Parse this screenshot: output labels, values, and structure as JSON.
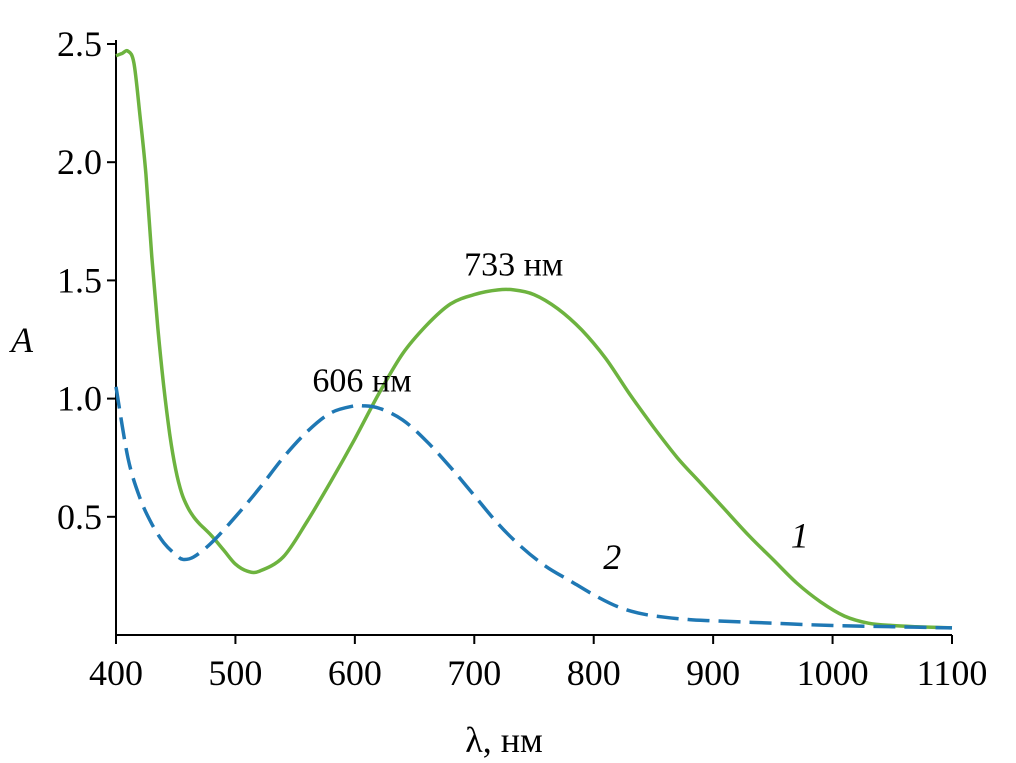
{
  "chart_data": {
    "type": "line",
    "xlabel": "λ, нм",
    "ylabel": "A",
    "xlim": [
      400,
      1100
    ],
    "ylim": [
      0,
      2.5
    ],
    "x_ticks": [
      400,
      500,
      600,
      700,
      800,
      900,
      1000,
      1100
    ],
    "y_ticks": [
      0.5,
      1.0,
      1.5,
      2.0,
      2.5
    ],
    "x_tick_labels": [
      "400",
      "500",
      "600",
      "700",
      "800",
      "900",
      "1000",
      "1100"
    ],
    "y_tick_labels": [
      "0.5",
      "1.0",
      "1.5",
      "2.0",
      "2.5"
    ],
    "grid": false,
    "series": [
      {
        "label": "1",
        "color": "#6db33f",
        "style": "solid",
        "label_at": [
          965,
          0.37
        ],
        "x": [
          400,
          405,
          410,
          415,
          420,
          425,
          430,
          435,
          440,
          445,
          450,
          455,
          460,
          465,
          470,
          480,
          490,
          500,
          510,
          520,
          540,
          560,
          580,
          600,
          620,
          640,
          660,
          680,
          700,
          720,
          733,
          750,
          770,
          790,
          810,
          830,
          850,
          870,
          890,
          910,
          930,
          950,
          970,
          990,
          1010,
          1030,
          1050,
          1070,
          1100
        ],
        "y": [
          2.45,
          2.46,
          2.47,
          2.42,
          2.2,
          1.95,
          1.6,
          1.3,
          1.05,
          0.85,
          0.7,
          0.6,
          0.54,
          0.5,
          0.47,
          0.42,
          0.36,
          0.3,
          0.27,
          0.27,
          0.33,
          0.48,
          0.65,
          0.83,
          1.02,
          1.19,
          1.31,
          1.4,
          1.44,
          1.46,
          1.46,
          1.44,
          1.38,
          1.29,
          1.17,
          1.02,
          0.88,
          0.75,
          0.64,
          0.53,
          0.42,
          0.32,
          0.22,
          0.14,
          0.08,
          0.05,
          0.04,
          0.035,
          0.03
        ]
      },
      {
        "label": "2",
        "color": "#1f78b4",
        "style": "dashed",
        "label_at": [
          808,
          0.28
        ],
        "x": [
          400,
          410,
          420,
          430,
          440,
          450,
          456,
          465,
          480,
          500,
          520,
          540,
          560,
          580,
          600,
          606,
          620,
          640,
          660,
          680,
          700,
          720,
          740,
          760,
          780,
          800,
          820,
          840,
          860,
          880,
          900,
          950,
          1000,
          1050,
          1100
        ],
        "y": [
          1.05,
          0.75,
          0.58,
          0.47,
          0.39,
          0.34,
          0.32,
          0.33,
          0.39,
          0.5,
          0.62,
          0.75,
          0.86,
          0.94,
          0.97,
          0.97,
          0.96,
          0.91,
          0.82,
          0.71,
          0.59,
          0.47,
          0.37,
          0.29,
          0.23,
          0.17,
          0.12,
          0.09,
          0.075,
          0.065,
          0.06,
          0.05,
          0.04,
          0.035,
          0.03
        ]
      }
    ],
    "annotations": [
      {
        "text": "733 нм",
        "x": 733,
        "y": 1.52
      },
      {
        "text": "606 нм",
        "x": 606,
        "y": 1.03
      }
    ]
  }
}
